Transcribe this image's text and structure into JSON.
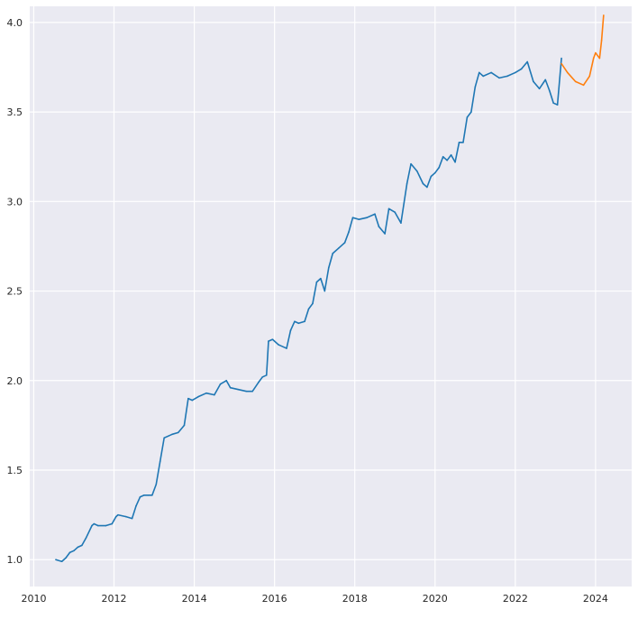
{
  "chart_data": {
    "type": "line",
    "title": "",
    "xlabel": "",
    "ylabel": "",
    "xlim": [
      2009.9,
      2024.9
    ],
    "ylim": [
      0.85,
      4.09
    ],
    "x_ticks": [
      {
        "value": 2010,
        "label": "2010"
      },
      {
        "value": 2012,
        "label": "2012"
      },
      {
        "value": 2014,
        "label": "2014"
      },
      {
        "value": 2016,
        "label": "2016"
      },
      {
        "value": 2018,
        "label": "2018"
      },
      {
        "value": 2020,
        "label": "2020"
      },
      {
        "value": 2022,
        "label": "2022"
      },
      {
        "value": 2024,
        "label": "2024"
      }
    ],
    "y_ticks": [
      {
        "value": 1.0,
        "label": "1.0"
      },
      {
        "value": 1.5,
        "label": "1.5"
      },
      {
        "value": 2.0,
        "label": "2.0"
      },
      {
        "value": 2.5,
        "label": "2.5"
      },
      {
        "value": 3.0,
        "label": "3.0"
      },
      {
        "value": 3.5,
        "label": "3.5"
      },
      {
        "value": 4.0,
        "label": "4.0"
      }
    ],
    "grid": true,
    "legend": "none",
    "background_color": "#eaeaf2",
    "grid_color": "#ffffff",
    "series": [
      {
        "color": "#1f77b4",
        "x": [
          2010.55,
          2010.7,
          2010.8,
          2010.9,
          2011.0,
          2011.1,
          2011.2,
          2011.3,
          2011.45,
          2011.5,
          2011.6,
          2011.8,
          2011.95,
          2012.05,
          2012.1,
          2012.3,
          2012.45,
          2012.55,
          2012.65,
          2012.75,
          2012.85,
          2012.95,
          2013.05,
          2013.15,
          2013.25,
          2013.35,
          2013.45,
          2013.6,
          2013.75,
          2013.85,
          2013.95,
          2014.1,
          2014.3,
          2014.5,
          2014.65,
          2014.8,
          2014.9,
          2015.1,
          2015.3,
          2015.45,
          2015.6,
          2015.7,
          2015.8,
          2015.85,
          2015.95,
          2016.1,
          2016.3,
          2016.4,
          2016.5,
          2016.6,
          2016.75,
          2016.85,
          2016.95,
          2017.05,
          2017.15,
          2017.25,
          2017.35,
          2017.45,
          2017.6,
          2017.75,
          2017.85,
          2017.95,
          2018.1,
          2018.3,
          2018.5,
          2018.6,
          2018.75,
          2018.85,
          2019.0,
          2019.15,
          2019.3,
          2019.4,
          2019.55,
          2019.7,
          2019.8,
          2019.9,
          2020.0,
          2020.1,
          2020.2,
          2020.3,
          2020.4,
          2020.5,
          2020.6,
          2020.7,
          2020.8,
          2020.9,
          2021.0,
          2021.1,
          2021.2,
          2021.4,
          2021.6,
          2021.8,
          2022.0,
          2022.15,
          2022.3,
          2022.45,
          2022.6,
          2022.75,
          2022.85,
          2022.95,
          2023.05,
          2023.15
        ],
        "y": [
          1.0,
          0.99,
          1.01,
          1.04,
          1.05,
          1.07,
          1.08,
          1.12,
          1.19,
          1.2,
          1.19,
          1.19,
          1.2,
          1.24,
          1.25,
          1.24,
          1.23,
          1.3,
          1.35,
          1.36,
          1.36,
          1.36,
          1.42,
          1.55,
          1.68,
          1.69,
          1.7,
          1.71,
          1.75,
          1.9,
          1.89,
          1.91,
          1.93,
          1.92,
          1.98,
          2.0,
          1.96,
          1.95,
          1.94,
          1.94,
          1.99,
          2.02,
          2.03,
          2.22,
          2.23,
          2.2,
          2.18,
          2.28,
          2.33,
          2.32,
          2.33,
          2.4,
          2.43,
          2.55,
          2.57,
          2.5,
          2.63,
          2.71,
          2.74,
          2.77,
          2.83,
          2.91,
          2.9,
          2.91,
          2.93,
          2.86,
          2.82,
          2.96,
          2.94,
          2.88,
          3.1,
          3.21,
          3.17,
          3.1,
          3.08,
          3.14,
          3.16,
          3.19,
          3.25,
          3.23,
          3.26,
          3.22,
          3.33,
          3.33,
          3.47,
          3.5,
          3.64,
          3.72,
          3.7,
          3.72,
          3.69,
          3.7,
          3.72,
          3.74,
          3.78,
          3.67,
          3.63,
          3.68,
          3.62,
          3.55,
          3.54,
          3.8
        ]
      },
      {
        "color": "#ff7f0e",
        "x": [
          2023.15,
          2023.3,
          2023.5,
          2023.7,
          2023.85,
          2023.95,
          2024.0,
          2024.1,
          2024.15,
          2024.2
        ],
        "y": [
          3.77,
          3.72,
          3.67,
          3.65,
          3.7,
          3.8,
          3.83,
          3.8,
          3.9,
          4.04
        ]
      }
    ]
  }
}
